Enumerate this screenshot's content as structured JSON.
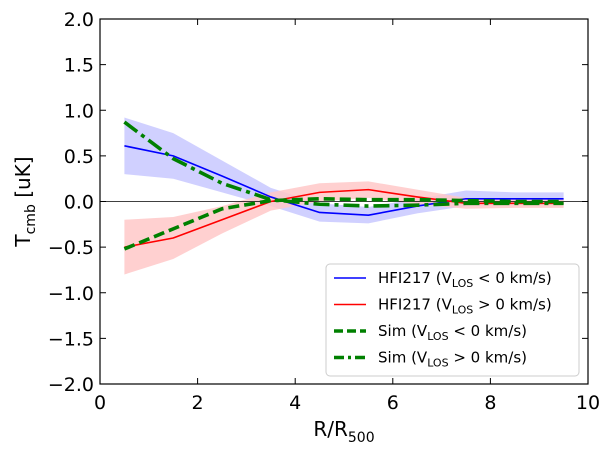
{
  "chart_data": {
    "type": "line",
    "xlabel": {
      "main": "R/R",
      "sub": "500"
    },
    "ylabel": {
      "main": "T",
      "sub": "cmb",
      "unit": " [uK]"
    },
    "xlim": [
      0,
      10
    ],
    "ylim": [
      -2.0,
      2.0
    ],
    "x_ticks": [
      0,
      2,
      4,
      6,
      8,
      10
    ],
    "x_tick_labels": [
      "0",
      "2",
      "4",
      "6",
      "8",
      "10"
    ],
    "y_ticks": [
      2.0,
      1.5,
      1.0,
      0.5,
      0.0,
      -0.5,
      -1.0,
      -1.5,
      -2.0
    ],
    "y_tick_labels": [
      "2.0",
      "1.5",
      "1.0",
      "0.5",
      "0.0",
      "−0.5",
      "−1.0",
      "−1.5",
      "−2.0"
    ],
    "x": [
      0.5,
      1.5,
      2.5,
      3.5,
      4.5,
      5.5,
      6.5,
      7.5,
      8.5,
      9.5
    ],
    "zero_line": 0,
    "legend_position": "lower-right",
    "series": [
      {
        "id": "hfi_neg",
        "name": "HFI217",
        "legend": {
          "pre": "HFI217 (V",
          "sub": "LOS",
          "post": " < 0 km/s)"
        },
        "style": "solid",
        "color": "#0000ff",
        "band_color": "#c8c8ff",
        "values": [
          0.61,
          0.5,
          0.28,
          0.05,
          -0.12,
          -0.15,
          -0.05,
          0.03,
          0.03,
          0.03
        ],
        "lower": [
          0.3,
          0.25,
          0.1,
          -0.05,
          -0.22,
          -0.24,
          -0.13,
          -0.05,
          -0.04,
          -0.04
        ],
        "upper": [
          0.92,
          0.75,
          0.45,
          0.15,
          -0.02,
          -0.06,
          0.03,
          0.12,
          0.1,
          0.1
        ]
      },
      {
        "id": "hfi_pos",
        "name": "HFI217",
        "legend": {
          "pre": "HFI217 (V",
          "sub": "LOS",
          "post": " > 0 km/s)"
        },
        "style": "solid",
        "color": "#ff0000",
        "band_color": "#ffc8c8",
        "values": [
          -0.5,
          -0.4,
          -0.2,
          0.0,
          0.1,
          0.13,
          0.05,
          -0.02,
          -0.02,
          -0.02
        ],
        "lower": [
          -0.8,
          -0.63,
          -0.35,
          -0.1,
          0.0,
          0.04,
          -0.03,
          -0.08,
          -0.07,
          -0.07
        ],
        "upper": [
          -0.2,
          -0.17,
          -0.05,
          0.1,
          0.2,
          0.22,
          0.13,
          0.04,
          0.03,
          0.03
        ]
      },
      {
        "id": "sim_neg",
        "name": "Sim",
        "legend": {
          "pre": "Sim (V",
          "sub": "LOS",
          "post": " < 0 km/s)"
        },
        "style": "dashed",
        "color": "#008000",
        "values": [
          -0.52,
          -0.3,
          -0.08,
          0.01,
          0.03,
          0.02,
          0.02,
          0.01,
          0.0,
          0.0
        ]
      },
      {
        "id": "sim_pos",
        "name": "Sim",
        "legend": {
          "pre": "Sim (V",
          "sub": "LOS",
          "post": " > 0 km/s)"
        },
        "style": "dashdot",
        "color": "#008000",
        "values": [
          0.87,
          0.47,
          0.2,
          0.02,
          -0.03,
          -0.05,
          -0.04,
          -0.02,
          -0.02,
          -0.02
        ]
      }
    ]
  }
}
